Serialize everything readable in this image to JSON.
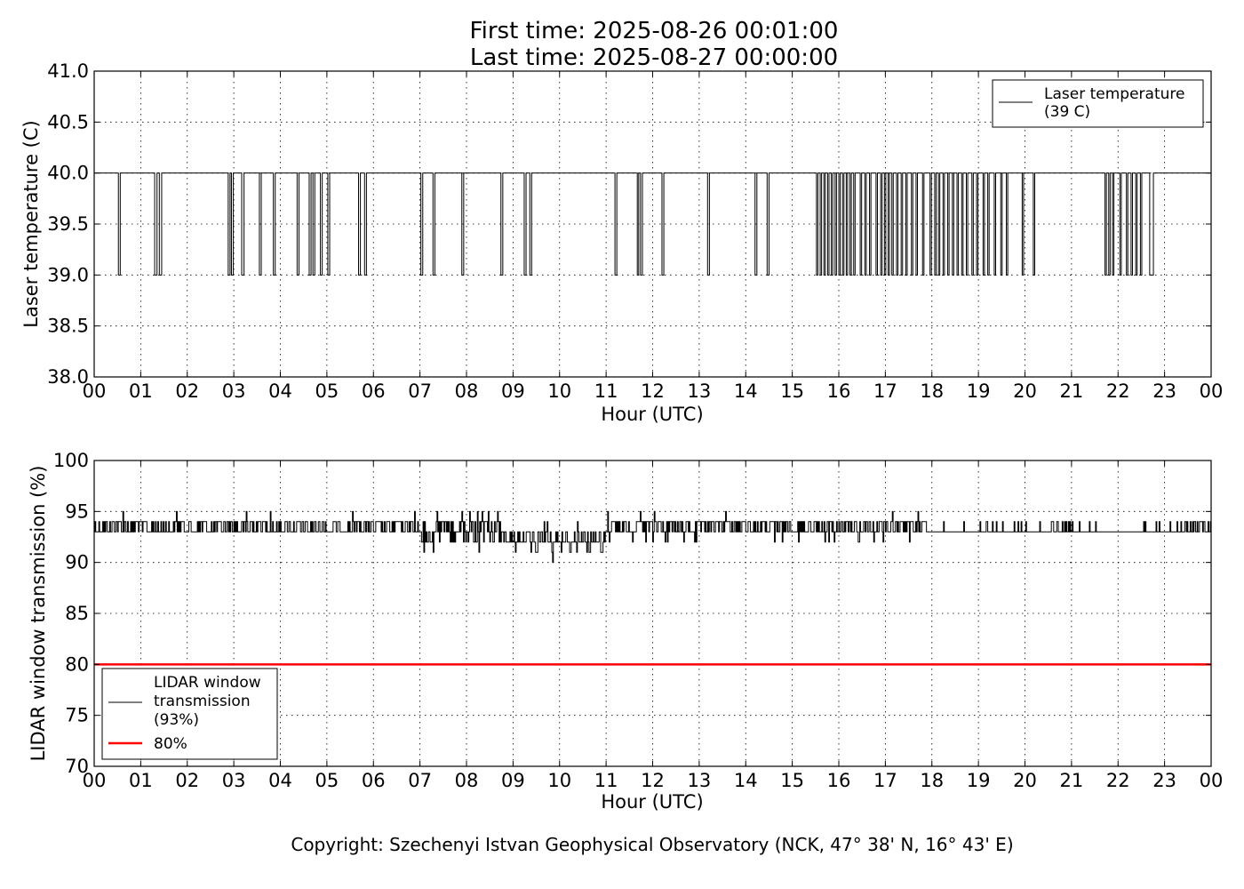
{
  "title_line1": "First time: 2025-08-26 00:01:00",
  "title_line2": "Last time: 2025-08-27 00:00:00",
  "copyright_text": "Copyright: Szechenyi Istvan Geophysical Observatory (NCK, 47° 38' N, 16° 43' E)",
  "chart_data": [
    {
      "type": "line",
      "xlabel": "Hour (UTC)",
      "ylabel": "Laser temperature (C)",
      "xlim": [
        0,
        24
      ],
      "ylim": [
        38.0,
        41.0
      ],
      "xticks": [
        "00",
        "01",
        "02",
        "03",
        "04",
        "05",
        "06",
        "07",
        "08",
        "09",
        "10",
        "11",
        "12",
        "13",
        "14",
        "15",
        "16",
        "17",
        "18",
        "19",
        "20",
        "21",
        "22",
        "23",
        "00"
      ],
      "yticks": [
        "38.0",
        "38.5",
        "39.0",
        "39.5",
        "40.0",
        "40.5",
        "41.0"
      ],
      "grid": true,
      "legend_position": "top-right",
      "series": [
        {
          "name": "Laser temperature\n(39 C)",
          "color": "#000000",
          "baseline": 40.0,
          "dip_value": 39.0,
          "dips": [
            [
              0.52,
              0.56
            ],
            [
              1.3,
              1.35
            ],
            [
              1.4,
              1.45
            ],
            [
              2.88,
              2.92
            ],
            [
              2.95,
              2.99
            ],
            [
              3.17,
              3.22
            ],
            [
              3.55,
              3.59
            ],
            [
              3.85,
              3.89
            ],
            [
              4.36,
              4.4
            ],
            [
              4.62,
              4.66
            ],
            [
              4.7,
              4.74
            ],
            [
              4.86,
              4.9
            ],
            [
              5.02,
              5.06
            ],
            [
              5.68,
              5.72
            ],
            [
              5.81,
              5.85
            ],
            [
              7.02,
              7.06
            ],
            [
              7.28,
              7.32
            ],
            [
              7.9,
              7.94
            ],
            [
              8.74,
              8.78
            ],
            [
              9.24,
              9.28
            ],
            [
              9.36,
              9.4
            ],
            [
              11.19,
              11.23
            ],
            [
              11.67,
              11.7
            ],
            [
              11.74,
              11.78
            ],
            [
              12.2,
              12.24
            ],
            [
              13.18,
              13.22
            ],
            [
              14.2,
              14.24
            ],
            [
              14.46,
              14.5
            ],
            [
              15.52,
              15.55
            ],
            [
              15.6,
              15.63
            ],
            [
              15.68,
              15.71
            ],
            [
              15.76,
              15.79
            ],
            [
              15.84,
              15.87
            ],
            [
              15.92,
              15.95
            ],
            [
              16.0,
              16.03
            ],
            [
              16.08,
              16.11
            ],
            [
              16.16,
              16.19
            ],
            [
              16.24,
              16.27
            ],
            [
              16.32,
              16.35
            ],
            [
              16.46,
              16.49
            ],
            [
              16.56,
              16.59
            ],
            [
              16.66,
              16.69
            ],
            [
              16.8,
              16.83
            ],
            [
              16.9,
              16.93
            ],
            [
              16.98,
              17.01
            ],
            [
              17.06,
              17.09
            ],
            [
              17.14,
              17.17
            ],
            [
              17.24,
              17.27
            ],
            [
              17.34,
              17.37
            ],
            [
              17.44,
              17.47
            ],
            [
              17.56,
              17.59
            ],
            [
              17.66,
              17.69
            ],
            [
              17.8,
              17.83
            ],
            [
              17.96,
              17.99
            ],
            [
              18.06,
              18.09
            ],
            [
              18.14,
              18.17
            ],
            [
              18.24,
              18.27
            ],
            [
              18.34,
              18.37
            ],
            [
              18.44,
              18.47
            ],
            [
              18.54,
              18.57
            ],
            [
              18.64,
              18.67
            ],
            [
              18.74,
              18.77
            ],
            [
              18.86,
              18.89
            ],
            [
              18.96,
              18.99
            ],
            [
              19.1,
              19.13
            ],
            [
              19.2,
              19.23
            ],
            [
              19.34,
              19.37
            ],
            [
              19.48,
              19.51
            ],
            [
              19.6,
              19.63
            ],
            [
              19.94,
              19.97
            ],
            [
              20.18,
              20.21
            ],
            [
              21.72,
              21.75
            ],
            [
              21.8,
              21.83
            ],
            [
              21.88,
              21.91
            ],
            [
              22.04,
              22.07
            ],
            [
              22.18,
              22.21
            ],
            [
              22.28,
              22.31
            ],
            [
              22.38,
              22.41
            ],
            [
              22.48,
              22.51
            ],
            [
              22.68,
              22.76
            ]
          ]
        }
      ]
    },
    {
      "type": "line",
      "xlabel": "Hour (UTC)",
      "ylabel": "LIDAR window transmission (%)",
      "xlim": [
        0,
        24
      ],
      "ylim": [
        70,
        100
      ],
      "xticks": [
        "00",
        "01",
        "02",
        "03",
        "04",
        "05",
        "06",
        "07",
        "08",
        "09",
        "10",
        "11",
        "12",
        "13",
        "14",
        "15",
        "16",
        "17",
        "18",
        "19",
        "20",
        "21",
        "22",
        "23",
        "00"
      ],
      "yticks": [
        "70",
        "75",
        "80",
        "85",
        "90",
        "95",
        "100"
      ],
      "grid": true,
      "legend_position": "lower-left",
      "series": [
        {
          "name": "LIDAR window\ntransmission\n(93%)",
          "color": "#000000",
          "segments": [
            {
              "from": 0.0,
              "to": 7.0,
              "base": 93,
              "noise": [
                [
                  94,
                  0.45
                ],
                [
                  95,
                  0.02
                ]
              ]
            },
            {
              "from": 7.0,
              "to": 8.7,
              "base": 93,
              "noise": [
                [
                  94,
                  0.35
                ],
                [
                  92,
                  0.18
                ],
                [
                  91,
                  0.04
                ],
                [
                  95,
                  0.04
                ]
              ]
            },
            {
              "from": 8.7,
              "to": 11.0,
              "base": 92,
              "noise": [
                [
                  93,
                  0.35
                ],
                [
                  91,
                  0.12
                ],
                [
                  90,
                  0.02
                ],
                [
                  94,
                  0.03
                ]
              ]
            },
            {
              "from": 11.0,
              "to": 17.9,
              "base": 93,
              "noise": [
                [
                  94,
                  0.5
                ],
                [
                  92,
                  0.04
                ],
                [
                  95,
                  0.01
                ]
              ]
            },
            {
              "from": 17.9,
              "to": 23.2,
              "base": 93,
              "noise": [
                [
                  94,
                  0.08
                ]
              ]
            },
            {
              "from": 23.2,
              "to": 24.0,
              "base": 93,
              "noise": [
                [
                  94,
                  0.4
                ]
              ]
            }
          ]
        },
        {
          "name": "80%",
          "color": "#ff0000",
          "x": [
            0,
            24
          ],
          "y": [
            80,
            80
          ]
        }
      ]
    }
  ]
}
